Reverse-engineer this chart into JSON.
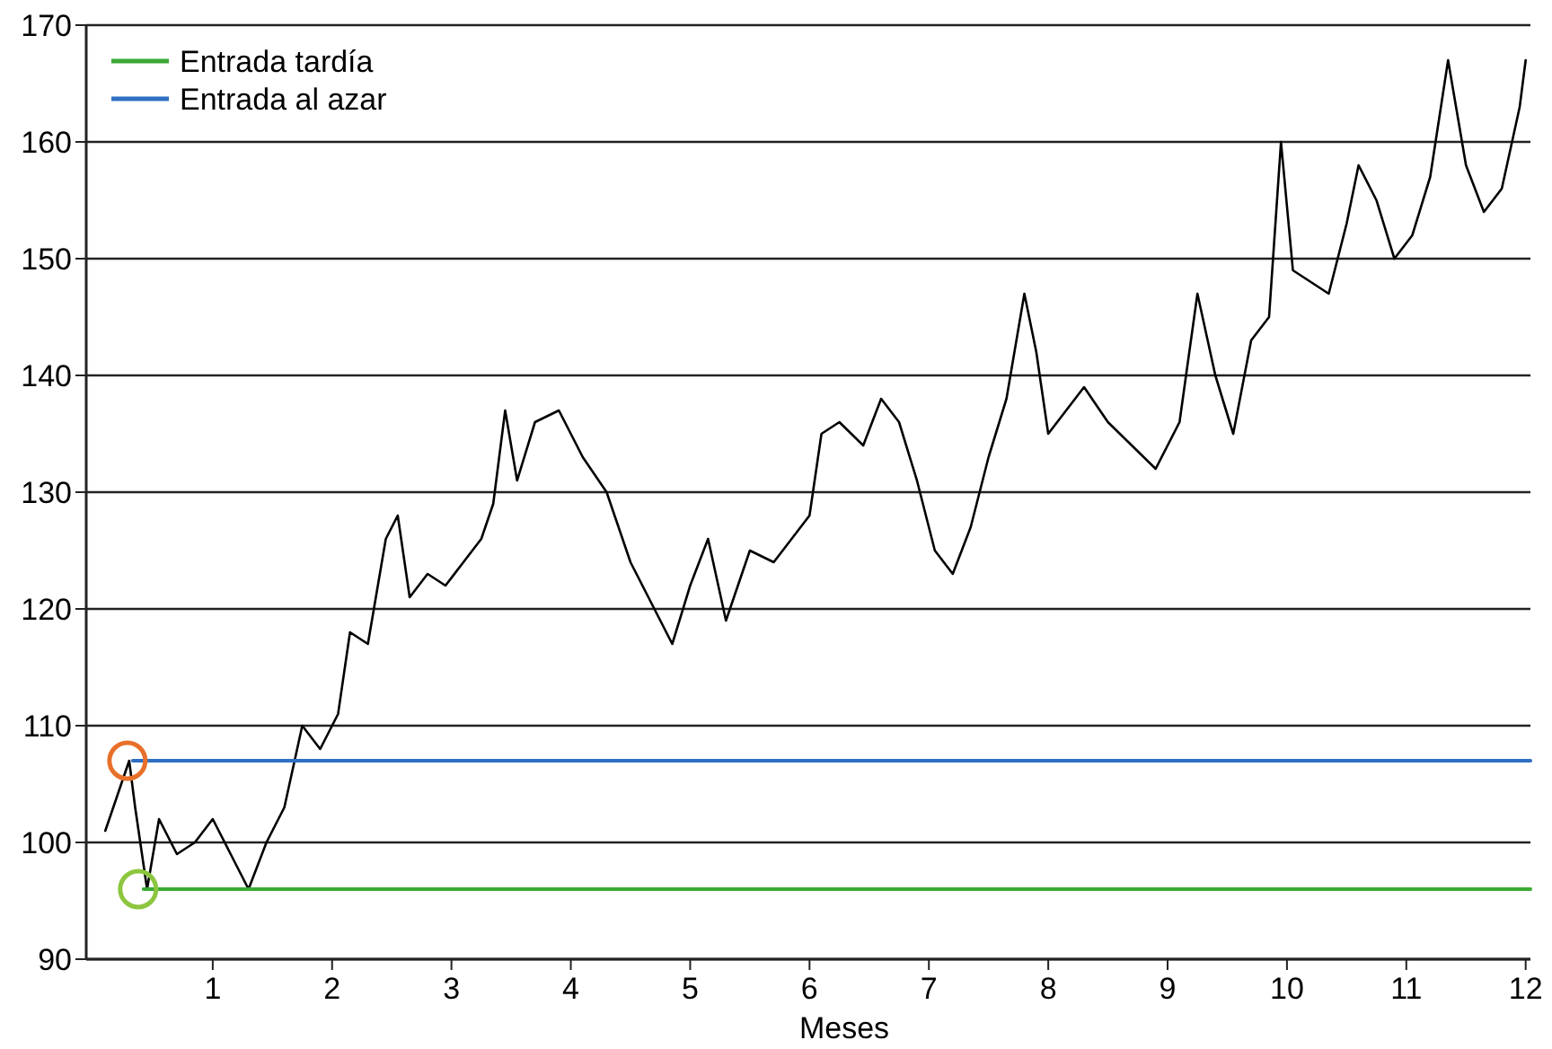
{
  "chart_data": {
    "type": "line",
    "xlabel": "Meses",
    "xlim": [
      -0.06,
      12.04
    ],
    "xticks": [
      1,
      2,
      3,
      4,
      5,
      6,
      7,
      8,
      9,
      10,
      11,
      12
    ],
    "ylim": [
      90,
      170
    ],
    "yticks": [
      90,
      100,
      110,
      120,
      130,
      140,
      150,
      160,
      170
    ],
    "grid": "y",
    "legend": "top left",
    "line_style": "solid",
    "series": [
      {
        "color": "#000000",
        "x": [
          0.1,
          0.2,
          0.3,
          0.35,
          0.45,
          0.55,
          0.7,
          0.85,
          1.0,
          1.15,
          1.3,
          1.45,
          1.6,
          1.75,
          1.9,
          2.05,
          2.15,
          2.3,
          2.45,
          2.55,
          2.65,
          2.8,
          2.95,
          3.1,
          3.25,
          3.35,
          3.45,
          3.55,
          3.7,
          3.9,
          4.1,
          4.3,
          4.5,
          4.7,
          4.85,
          5.0,
          5.15,
          5.3,
          5.5,
          5.7,
          5.85,
          6.0,
          6.1,
          6.25,
          6.45,
          6.6,
          6.75,
          6.9,
          7.05,
          7.2,
          7.35,
          7.5,
          7.65,
          7.8,
          7.9,
          8.0,
          8.15,
          8.3,
          8.5,
          8.7,
          8.9,
          9.1,
          9.25,
          9.4,
          9.55,
          9.7,
          9.85,
          9.95,
          10.05,
          10.2,
          10.35,
          10.5,
          10.6,
          10.75,
          10.9,
          11.05,
          11.2,
          11.35,
          11.5,
          11.65,
          11.8,
          11.95,
          12.0
        ],
        "values": [
          101,
          104,
          107,
          103,
          96,
          102,
          99,
          100,
          102,
          99,
          96,
          100,
          103,
          110,
          108,
          111,
          118,
          117,
          126,
          128,
          121,
          123,
          122,
          124,
          126,
          129,
          137,
          131,
          136,
          137,
          133,
          130,
          124,
          120,
          117,
          122,
          126,
          119,
          125,
          124,
          126,
          128,
          135,
          136,
          134,
          138,
          136,
          131,
          125,
          123,
          127,
          133,
          138,
          147,
          142,
          135,
          137,
          139,
          136,
          134,
          132,
          136,
          147,
          140,
          135,
          143,
          145,
          160,
          149,
          148,
          147,
          153,
          158,
          155,
          150,
          152,
          157,
          167,
          158,
          154,
          156,
          163,
          167
        ]
      },
      {
        "name": "Entrada tardía",
        "color": "#3aaa35",
        "x": [
          0.42,
          12.04
        ],
        "values": [
          96,
          96
        ]
      },
      {
        "name": "Entrada al azar",
        "color": "#2f6fc4",
        "x": [
          0.33,
          12.04
        ],
        "values": [
          107,
          107
        ]
      }
    ]
  }
}
